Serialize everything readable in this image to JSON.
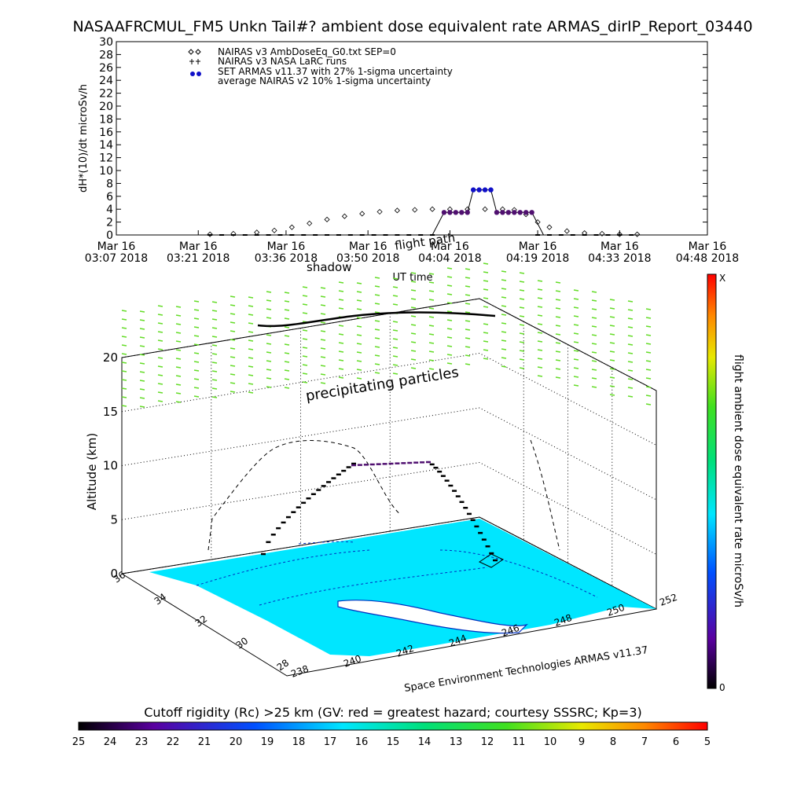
{
  "title": "NASAAFRCMUL_FM5 Unkn Tail#? ambient dose equivalent rate ARMAS_dirIP_Report_03440",
  "legend": [
    "NAIRAS v3 AmbDoseEq_G0.txt SEP=0",
    "NAIRAS v3 NASA LaRC runs",
    "SET ARMAS v11.37 with 27% 1-sigma uncertainty",
    "average NAIRAS v2 10% 1-sigma uncertainty"
  ],
  "annotations": {
    "shadow": "shadow",
    "flight_path": "flight path",
    "precipitating": "precipitating particles",
    "credit": "Space Environment Technologies ARMAS v11.37"
  },
  "colors": {
    "armas": "#1010c8",
    "armas_mid": "#501070",
    "nairas_curve": "#000000",
    "surface": "#00e6ff",
    "surface_line": "#0030c0",
    "precip": "#64dc28"
  },
  "colorbar": {
    "label": "flight ambient dose equivalent rate microSv/h",
    "top": "X",
    "bottom": "0"
  },
  "cutoff_bar": {
    "label": "Cutoff rigidity (Rc) >25 km (GV: red = greatest hazard; courtesy SSSRC; Kp=3)",
    "ticks": [
      "25",
      "24",
      "23",
      "22",
      "21",
      "20",
      "19",
      "18",
      "17",
      "16",
      "15",
      "14",
      "13",
      "12",
      "11",
      "10",
      "9",
      "8",
      "7",
      "6",
      "5"
    ]
  },
  "chart_data": [
    {
      "type": "line",
      "title": "NASAAFRCMUL_FM5 Unkn Tail#? ambient dose equivalent rate ARMAS_dirIP_Report_03440",
      "xlabel": "UT time",
      "ylabel": "dH*(10)/dt microSv/h",
      "ylim": [
        0,
        30
      ],
      "yticks": [
        0,
        2,
        4,
        6,
        8,
        10,
        12,
        14,
        16,
        18,
        20,
        22,
        24,
        26,
        28,
        30
      ],
      "xticks": [
        {
          "t": 0,
          "line1": "Mar 16",
          "line2": "03:07 2018"
        },
        {
          "t": 14,
          "line1": "Mar 16",
          "line2": "03:21 2018"
        },
        {
          "t": 29,
          "line1": "Mar 16",
          "line2": "03:36 2018"
        },
        {
          "t": 43,
          "line1": "Mar 16",
          "line2": "03:50 2018"
        },
        {
          "t": 57,
          "line1": "Mar 16",
          "line2": "04:04 2018"
        },
        {
          "t": 72,
          "line1": "Mar 16",
          "line2": "04:19 2018"
        },
        {
          "t": 86,
          "line1": "Mar 16",
          "line2": "04:33 2018"
        },
        {
          "t": 101,
          "line1": "Mar 16",
          "line2": "04:48 2018"
        }
      ],
      "xlim": [
        0,
        101
      ],
      "series": [
        {
          "name": "NAIRAS v3 AmbDoseEq_G0.txt SEP=0",
          "marker": "diamond",
          "x": [
            16,
            20,
            24,
            27,
            30,
            33,
            36,
            39,
            42,
            45,
            48,
            51,
            54,
            57,
            60,
            63,
            66,
            68,
            70,
            72,
            74,
            77,
            80,
            83,
            86,
            89
          ],
          "y": [
            0.1,
            0.2,
            0.4,
            0.7,
            1.2,
            1.8,
            2.4,
            2.9,
            3.3,
            3.6,
            3.8,
            3.9,
            4.0,
            4.0,
            4.0,
            4.0,
            4.0,
            3.9,
            3.2,
            2.0,
            1.2,
            0.6,
            0.3,
            0.2,
            0.1,
            0.1
          ]
        },
        {
          "name": "SET ARMAS v11.37 with 27% 1-sigma uncertainty",
          "marker": "filled-circle",
          "x": [
            56,
            57,
            58,
            59,
            60,
            61,
            62,
            63,
            64,
            65,
            66,
            67,
            68,
            69,
            70,
            71
          ],
          "y": [
            3.5,
            3.5,
            3.5,
            3.5,
            3.5,
            7.0,
            7.0,
            7.0,
            7.0,
            3.5,
            3.5,
            3.5,
            3.5,
            3.5,
            3.5,
            3.5
          ]
        },
        {
          "name": "ARMAS baseline points",
          "marker": "dash",
          "x": [
            16,
            18,
            20,
            22,
            24,
            26,
            28,
            30,
            32,
            34,
            36,
            38,
            40,
            42,
            44,
            46,
            48,
            50,
            52,
            54,
            72,
            74,
            76,
            78,
            80,
            82,
            84,
            86,
            88
          ],
          "y": [
            0,
            0,
            0,
            0,
            0,
            0,
            0,
            0,
            0,
            0,
            0,
            0,
            0,
            0,
            0,
            0,
            0,
            0,
            0,
            0,
            0,
            0,
            0,
            0,
            0,
            0,
            0,
            0,
            0
          ]
        }
      ]
    },
    {
      "type": "scatter",
      "ylabel": "Altitude (km)",
      "zticks": [
        "0",
        "5",
        "10",
        "15",
        "20"
      ],
      "lat_ticks": [
        "36",
        "34",
        "32",
        "30",
        "28"
      ],
      "lon_ticks": [
        "238",
        "240",
        "242",
        "244",
        "246",
        "248",
        "250",
        "252"
      ]
    }
  ]
}
